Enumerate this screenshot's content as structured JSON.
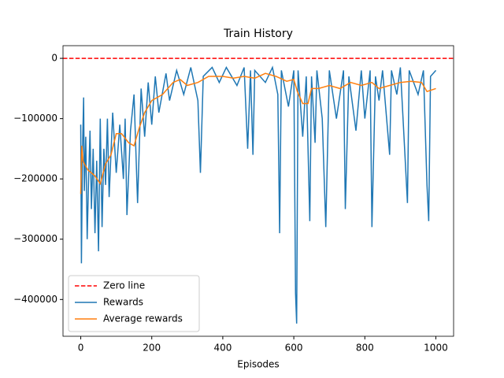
{
  "chart_data": {
    "type": "line",
    "title": "Train History",
    "xlabel": "Episodes",
    "xlim": [
      -50,
      1050
    ],
    "xticks": [
      0,
      200,
      400,
      600,
      800,
      1000
    ],
    "ylim": [
      -461000,
      21000
    ],
    "yticks": [
      {
        "value": -400000,
        "label": "−400000"
      },
      {
        "value": -300000,
        "label": "−300000"
      },
      {
        "value": -200000,
        "label": "−200000"
      },
      {
        "value": -100000,
        "label": "−100000"
      },
      0
    ],
    "legend": "lower left",
    "zero_line": {
      "name": "Zero line",
      "y": 0,
      "color": "#ff0000"
    },
    "series": [
      {
        "name": "Rewards",
        "color": "#1f77b4",
        "x": [
          0,
          2,
          5,
          8,
          10,
          14,
          18,
          22,
          26,
          30,
          35,
          40,
          45,
          50,
          55,
          60,
          65,
          70,
          75,
          80,
          90,
          100,
          110,
          120,
          125,
          130,
          140,
          150,
          160,
          170,
          180,
          190,
          200,
          210,
          220,
          240,
          250,
          270,
          290,
          310,
          330,
          337,
          345,
          370,
          390,
          410,
          440,
          460,
          470,
          478,
          485,
          490,
          520,
          540,
          555,
          560,
          565,
          585,
          600,
          605,
          608,
          612,
          625,
          635,
          645,
          650,
          660,
          665,
          680,
          690,
          700,
          720,
          740,
          745,
          755,
          775,
          790,
          800,
          815,
          820,
          830,
          840,
          850,
          870,
          875,
          890,
          900,
          920,
          925,
          950,
          965,
          975,
          980,
          985,
          1000
        ],
        "values": [
          -110000,
          -340000,
          -150000,
          -65000,
          -220000,
          -130000,
          -300000,
          -200000,
          -120000,
          -250000,
          -150000,
          -290000,
          -170000,
          -320000,
          -100000,
          -280000,
          -150000,
          -210000,
          -100000,
          -230000,
          -90000,
          -190000,
          -110000,
          -200000,
          -100000,
          -260000,
          -120000,
          -60000,
          -240000,
          -50000,
          -130000,
          -40000,
          -110000,
          -30000,
          -90000,
          -25000,
          -70000,
          -20000,
          -60000,
          -15000,
          -70000,
          -190000,
          -30000,
          -15000,
          -40000,
          -15000,
          -45000,
          -15000,
          -150000,
          -20000,
          -160000,
          -20000,
          -40000,
          -15000,
          -60000,
          -290000,
          -20000,
          -80000,
          -20000,
          -390000,
          -440000,
          -20000,
          -130000,
          -30000,
          -270000,
          -30000,
          -140000,
          -20000,
          -100000,
          -280000,
          -20000,
          -100000,
          -20000,
          -250000,
          -30000,
          -120000,
          -20000,
          -100000,
          -20000,
          -280000,
          -30000,
          -70000,
          -20000,
          -160000,
          -20000,
          -60000,
          -15000,
          -240000,
          -20000,
          -60000,
          -20000,
          -210000,
          -270000,
          -30000,
          -20000
        ]
      },
      {
        "name": "Average rewards",
        "color": "#ff7f0e",
        "x": [
          0,
          3,
          6,
          10,
          20,
          30,
          40,
          55,
          70,
          85,
          100,
          115,
          135,
          150,
          165,
          180,
          200,
          230,
          260,
          280,
          300,
          330,
          360,
          400,
          430,
          460,
          490,
          520,
          550,
          580,
          600,
          610,
          625,
          640,
          650,
          670,
          700,
          730,
          760,
          790,
          820,
          840,
          870,
          900,
          930,
          960,
          975,
          1000
        ],
        "values": [
          -225000,
          -145000,
          -170000,
          -175000,
          -185000,
          -190000,
          -195000,
          -208000,
          -175000,
          -160000,
          -125000,
          -125000,
          -140000,
          -145000,
          -115000,
          -90000,
          -70000,
          -60000,
          -40000,
          -35000,
          -45000,
          -40000,
          -30000,
          -30000,
          -33000,
          -30000,
          -33000,
          -25000,
          -30000,
          -38000,
          -35000,
          -55000,
          -75000,
          -75000,
          -50000,
          -50000,
          -45000,
          -50000,
          -40000,
          -45000,
          -40000,
          -50000,
          -45000,
          -40000,
          -38000,
          -40000,
          -55000,
          -50000
        ]
      }
    ]
  }
}
